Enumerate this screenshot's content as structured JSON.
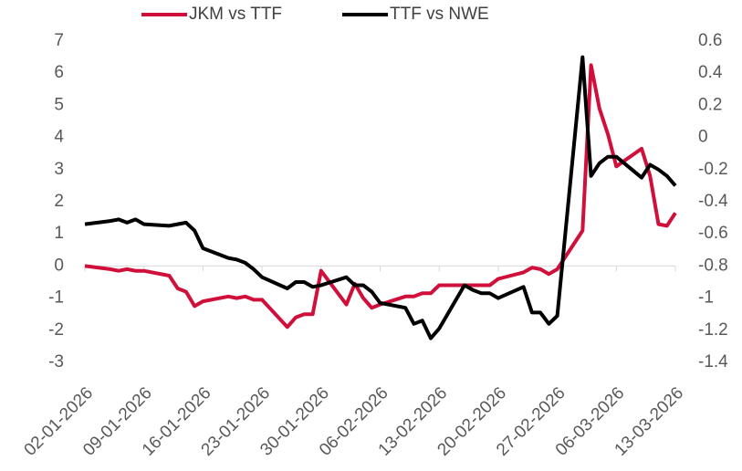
{
  "chart_data": {
    "type": "line",
    "x": [
      "02-01-2026",
      "05-01-2026",
      "06-01-2026",
      "07-01-2026",
      "08-01-2026",
      "09-01-2026",
      "12-01-2026",
      "13-01-2026",
      "14-01-2026",
      "15-01-2026",
      "16-01-2026",
      "19-01-2026",
      "20-01-2026",
      "21-01-2026",
      "22-01-2026",
      "23-01-2026",
      "26-01-2026",
      "27-01-2026",
      "28-01-2026",
      "29-01-2026",
      "30-01-2026",
      "02-02-2026",
      "03-02-2026",
      "04-02-2026",
      "05-02-2026",
      "06-02-2026",
      "09-02-2026",
      "10-02-2026",
      "11-02-2026",
      "12-02-2026",
      "13-02-2026",
      "16-02-2026",
      "17-02-2026",
      "18-02-2026",
      "19-02-2026",
      "20-02-2026",
      "23-02-2026",
      "24-02-2026",
      "25-02-2026",
      "26-02-2026",
      "27-02-2026",
      "02-03-2026",
      "03-03-2026",
      "04-03-2026",
      "05-03-2026",
      "06-03-2026",
      "09-03-2026",
      "10-03-2026",
      "11-03-2026",
      "12-03-2026",
      "13-03-2026"
    ],
    "series": [
      {
        "name": "JKM vs TTF",
        "color": "#d0103a",
        "axis": "y",
        "values": [
          0,
          -0.1,
          -0.15,
          -0.1,
          -0.15,
          -0.15,
          -0.3,
          -0.7,
          -0.8,
          -1.25,
          -1.1,
          -0.95,
          -1.0,
          -0.95,
          -1.05,
          -1.05,
          -1.9,
          -1.6,
          -1.5,
          -1.5,
          -0.15,
          -1.2,
          -0.55,
          -1.0,
          -1.3,
          -1.2,
          -0.95,
          -0.95,
          -0.85,
          -0.85,
          -0.6,
          -0.6,
          -0.6,
          -0.6,
          -0.6,
          -0.4,
          -0.2,
          -0.05,
          -0.1,
          -0.25,
          -0.1,
          1.1,
          6.25,
          4.9,
          4.1,
          3.1,
          3.65,
          2.8,
          1.3,
          1.25,
          1.65
        ]
      },
      {
        "name": "TTF vs NWE",
        "color": "#000000",
        "axis": "y2",
        "values": [
          -0.54,
          -0.52,
          -0.51,
          -0.53,
          -0.51,
          -0.54,
          -0.55,
          -0.54,
          -0.53,
          -0.58,
          -0.69,
          -0.75,
          -0.76,
          -0.78,
          -0.82,
          -0.87,
          -0.94,
          -0.9,
          -0.9,
          -0.93,
          -0.92,
          -0.87,
          -0.92,
          -0.92,
          -0.96,
          -1.03,
          -1.06,
          -1.16,
          -1.14,
          -1.25,
          -1.19,
          -0.92,
          -0.95,
          -0.97,
          -0.97,
          -1.0,
          -0.93,
          -1.09,
          -1.09,
          -1.16,
          -1.11,
          0.5,
          -0.24,
          -0.16,
          -0.12,
          -0.12,
          -0.25,
          -0.17,
          -0.2,
          -0.24,
          -0.3
        ]
      }
    ],
    "xlim": [
      "02-01-2026",
      "13-03-2026"
    ],
    "xticks": [
      "02-01-2026",
      "09-01-2026",
      "16-01-2026",
      "23-01-2026",
      "30-01-2026",
      "06-02-2026",
      "13-02-2026",
      "20-02-2026",
      "27-02-2026",
      "06-03-2026",
      "13-03-2026"
    ],
    "ylim": [
      -3,
      7
    ],
    "yticks": [
      7,
      6,
      5,
      4,
      3,
      2,
      1,
      0,
      -1,
      -2,
      -3
    ],
    "y2lim": [
      -1.4,
      0.6
    ],
    "y2ticks": [
      0.6,
      0.4,
      0.2,
      0,
      -0.2,
      -0.4,
      -0.6,
      -0.8,
      -1,
      -1.2,
      -1.4
    ],
    "legend": "top"
  }
}
